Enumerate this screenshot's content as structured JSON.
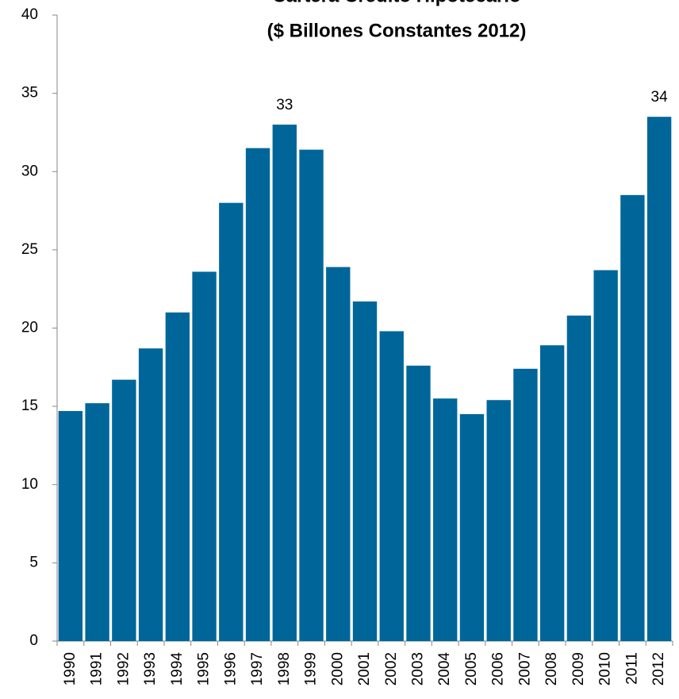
{
  "chart_data": {
    "type": "bar",
    "title": "Cartera Crédito Hipotecario",
    "subtitle": "($ Billones Constantes 2012)",
    "categories": [
      "1990",
      "1991",
      "1992",
      "1993",
      "1994",
      "1995",
      "1996",
      "1997",
      "1998",
      "1999",
      "2000",
      "2001",
      "2002",
      "2003",
      "2004",
      "2005",
      "2006",
      "2007",
      "2008",
      "2009",
      "2010",
      "2011",
      "2012"
    ],
    "values": [
      14.7,
      15.2,
      16.7,
      18.7,
      21.0,
      23.6,
      28.0,
      31.5,
      33.0,
      31.4,
      23.9,
      21.7,
      19.8,
      17.6,
      15.5,
      14.5,
      15.4,
      17.4,
      18.9,
      20.8,
      23.7,
      28.5,
      33.5
    ],
    "value_labels": [
      null,
      null,
      null,
      null,
      null,
      null,
      null,
      null,
      "33",
      null,
      null,
      null,
      null,
      null,
      null,
      null,
      null,
      null,
      null,
      null,
      null,
      null,
      "34"
    ],
    "color": "#006699",
    "ylim": [
      0,
      40
    ],
    "yticks": [
      0,
      5,
      10,
      15,
      20,
      25,
      30,
      35,
      40
    ],
    "grid": false
  }
}
